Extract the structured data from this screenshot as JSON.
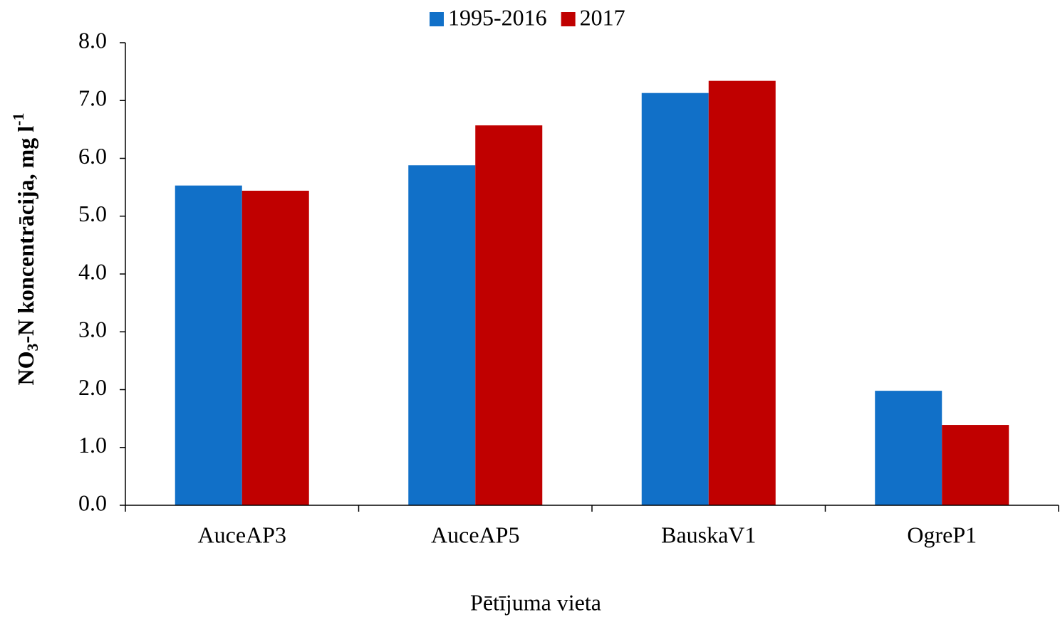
{
  "chart_data": {
    "type": "bar",
    "ylabel": [
      "NO",
      "3",
      "-N koncentrācija, mg l",
      "-1"
    ],
    "xlabel": "Pētījuma vieta",
    "categories": [
      "AuceAP3",
      "AuceAP5",
      "BauskaV1",
      "OgreP1"
    ],
    "series": [
      {
        "name": "1995-2016",
        "color": "#1170c8",
        "values": [
          5.53,
          5.88,
          7.13,
          1.98
        ]
      },
      {
        "name": "2017",
        "color": "#c00000",
        "values": [
          5.44,
          6.57,
          7.34,
          1.39
        ]
      }
    ],
    "ylim": [
      0,
      8
    ],
    "yticks": [
      {
        "value": 0,
        "label": "0.0"
      },
      {
        "value": 1,
        "label": "1.0"
      },
      {
        "value": 2,
        "label": "2.0"
      },
      {
        "value": 3,
        "label": "3.0"
      },
      {
        "value": 4,
        "label": "4.0"
      },
      {
        "value": 5,
        "label": "5.0"
      },
      {
        "value": 6,
        "label": "6.0"
      },
      {
        "value": 7,
        "label": "7.0"
      },
      {
        "value": 8,
        "label": "8.0"
      }
    ],
    "legend": "top"
  }
}
